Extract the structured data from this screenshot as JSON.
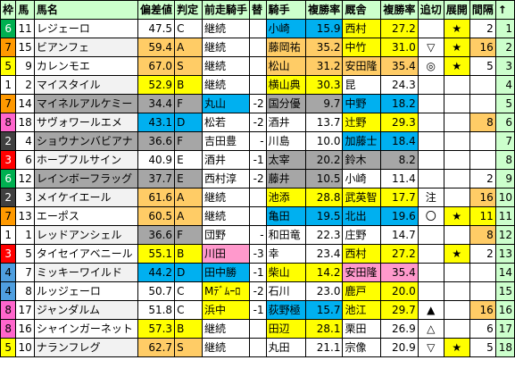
{
  "colors": {
    "header_bg": "#ccffcc",
    "yellow": "#ffff00",
    "orange": "#ffcc66",
    "gray": "#a6a6a6",
    "blue": "#00b0f0",
    "pink": "#ff99cc",
    "lightgreen": "#ccffcc",
    "waku1": "#ffffff",
    "waku2": "#404040",
    "waku3": "#ff0000",
    "waku4": "#4f9fe0",
    "waku5": "#ffff00",
    "waku6": "#00b050",
    "waku7": "#ff9900",
    "waku8": "#ff66cc"
  },
  "headers": [
    "枠",
    "馬",
    "馬名",
    "偏差値",
    "判定",
    "前走騎手",
    "替",
    "騎手",
    "複勝率",
    "厩舎",
    "複勝率",
    "追切",
    "展開",
    "間隔",
    "↑"
  ],
  "rows": [
    {
      "waku": "6",
      "umaban": "11",
      "name": "レジェーロ",
      "score": "47.5",
      "grade": "C",
      "prev": "継続",
      "change": "",
      "jockey": "小崎",
      "jrate": "15.9",
      "stable": "西村",
      "srate": "27.2",
      "oikiri": "",
      "tenkai": "★",
      "interval": "2",
      "up": "1"
    },
    {
      "waku": "7",
      "umaban": "15",
      "name": "ビアンフェ",
      "score": "59.4",
      "grade": "A",
      "prev": "継続",
      "change": "",
      "jockey": "藤岡祐",
      "jrate": "35.2",
      "stable": "中竹",
      "srate": "31.0",
      "oikiri": "▽",
      "tenkai": "★",
      "interval": "16",
      "up": "2"
    },
    {
      "waku": "5",
      "umaban": "9",
      "name": "カレンモエ",
      "score": "67.0",
      "grade": "S",
      "prev": "継続",
      "change": "",
      "jockey": "松山",
      "jrate": "31.2",
      "stable": "安田隆",
      "srate": "35.4",
      "oikiri": "◎",
      "tenkai": "★",
      "interval": "5",
      "up": "3"
    },
    {
      "waku": "1",
      "umaban": "2",
      "name": "マイスタイル",
      "score": "52.9",
      "grade": "B",
      "prev": "継続",
      "change": "",
      "jockey": "横山典",
      "jrate": "30.3",
      "stable": "昆",
      "srate": "24.3",
      "oikiri": "",
      "tenkai": "",
      "interval": "",
      "up": "4"
    },
    {
      "waku": "7",
      "umaban": "14",
      "name": "マイネルアルケミー",
      "score": "34.4",
      "grade": "F",
      "prev": "丸山",
      "change": "-2",
      "jockey": "国分優",
      "jrate": "9.7",
      "stable": "中野",
      "srate": "18.2",
      "oikiri": "",
      "tenkai": "",
      "interval": "",
      "up": "5"
    },
    {
      "waku": "8",
      "umaban": "18",
      "name": "サヴォワールエメ",
      "score": "43.1",
      "grade": "D",
      "prev": "松若",
      "change": "-2",
      "jockey": "酒井",
      "jrate": "13.7",
      "stable": "辻野",
      "srate": "29.3",
      "oikiri": "",
      "tenkai": "",
      "interval": "8",
      "up": "6"
    },
    {
      "waku": "2",
      "umaban": "4",
      "name": "ショウナンバビアナ",
      "score": "36.6",
      "grade": "F",
      "prev": "吉田豊",
      "change": "-",
      "jockey": "川島",
      "jrate": "10.0",
      "stable": "加藤士",
      "srate": "18.4",
      "oikiri": "",
      "tenkai": "",
      "interval": "",
      "up": "7"
    },
    {
      "waku": "3",
      "umaban": "6",
      "name": "ホープフルサイン",
      "score": "40.9",
      "grade": "E",
      "prev": "酒井",
      "change": "-1",
      "jockey": "太宰",
      "jrate": "20.2",
      "stable": "鈴木",
      "srate": "8.2",
      "oikiri": "",
      "tenkai": "",
      "interval": "",
      "up": "8"
    },
    {
      "waku": "6",
      "umaban": "12",
      "name": "レインボーフラッグ",
      "score": "37.7",
      "grade": "E",
      "prev": "西村淳",
      "change": "-2",
      "jockey": "藤井",
      "jrate": "10.5",
      "stable": "小崎",
      "srate": "11.4",
      "oikiri": "",
      "tenkai": "",
      "interval": "2",
      "up": "9"
    },
    {
      "waku": "2",
      "umaban": "3",
      "name": "メイケイエール",
      "score": "61.6",
      "grade": "A",
      "prev": "継続",
      "change": "",
      "jockey": "池添",
      "jrate": "28.8",
      "stable": "武英智",
      "srate": "17.7",
      "oikiri": "注",
      "tenkai": "",
      "interval": "16",
      "up": "10"
    },
    {
      "waku": "7",
      "umaban": "13",
      "name": "エーポス",
      "score": "60.5",
      "grade": "A",
      "prev": "継続",
      "change": "",
      "jockey": "亀田",
      "jrate": "19.5",
      "stable": "北出",
      "srate": "19.6",
      "oikiri": "〇",
      "tenkai": "★",
      "interval": "11",
      "up": "11"
    },
    {
      "waku": "1",
      "umaban": "1",
      "name": "レッドアンシェル",
      "score": "36.6",
      "grade": "F",
      "prev": "団野",
      "change": "-",
      "jockey": "和田竜",
      "jrate": "22.3",
      "stable": "庄野",
      "srate": "14.7",
      "oikiri": "",
      "tenkai": "",
      "interval": "8",
      "up": "12"
    },
    {
      "waku": "3",
      "umaban": "5",
      "name": "タイセイアベニール",
      "score": "55.1",
      "grade": "B",
      "prev": "川田",
      "change": "-3",
      "jockey": "幸",
      "jrate": "23.4",
      "stable": "西村",
      "srate": "27.2",
      "oikiri": "",
      "tenkai": "★",
      "interval": "2",
      "up": "13"
    },
    {
      "waku": "4",
      "umaban": "7",
      "name": "ミッキーワイルド",
      "score": "44.2",
      "grade": "D",
      "prev": "田中勝",
      "change": "-1",
      "jockey": "柴山",
      "jrate": "14.2",
      "stable": "安田隆",
      "srate": "35.4",
      "oikiri": "",
      "tenkai": "",
      "interval": "",
      "up": "14"
    },
    {
      "waku": "4",
      "umaban": "8",
      "name": "ルッジェーロ",
      "score": "50.7",
      "grade": "C",
      "prev": "Mﾃﾞﾑｰﾛ",
      "change": "-2",
      "jockey": "石川",
      "jrate": "23.0",
      "stable": "鹿戸",
      "srate": "20.0",
      "oikiri": "",
      "tenkai": "",
      "interval": "",
      "up": "15"
    },
    {
      "waku": "8",
      "umaban": "17",
      "name": "ジャンダルム",
      "score": "51.8",
      "grade": "C",
      "prev": "浜中",
      "change": "-1",
      "jockey": "荻野極",
      "jrate": "15.7",
      "stable": "池江",
      "srate": "29.7",
      "oikiri": "▲",
      "tenkai": "",
      "interval": "16",
      "up": "16"
    },
    {
      "waku": "8",
      "umaban": "16",
      "name": "シャインガーネット",
      "score": "57.3",
      "grade": "B",
      "prev": "継続",
      "change": "",
      "jockey": "田辺",
      "jrate": "28.1",
      "stable": "栗田",
      "srate": "26.9",
      "oikiri": "△",
      "tenkai": "",
      "interval": "6",
      "up": "17"
    },
    {
      "waku": "5",
      "umaban": "10",
      "name": "ナランフレグ",
      "score": "62.7",
      "grade": "S",
      "prev": "継続",
      "change": "",
      "jockey": "丸田",
      "jrate": "21.1",
      "stable": "宗像",
      "srate": "20.9",
      "oikiri": "▽",
      "tenkai": "★",
      "interval": "5",
      "up": "18"
    }
  ]
}
